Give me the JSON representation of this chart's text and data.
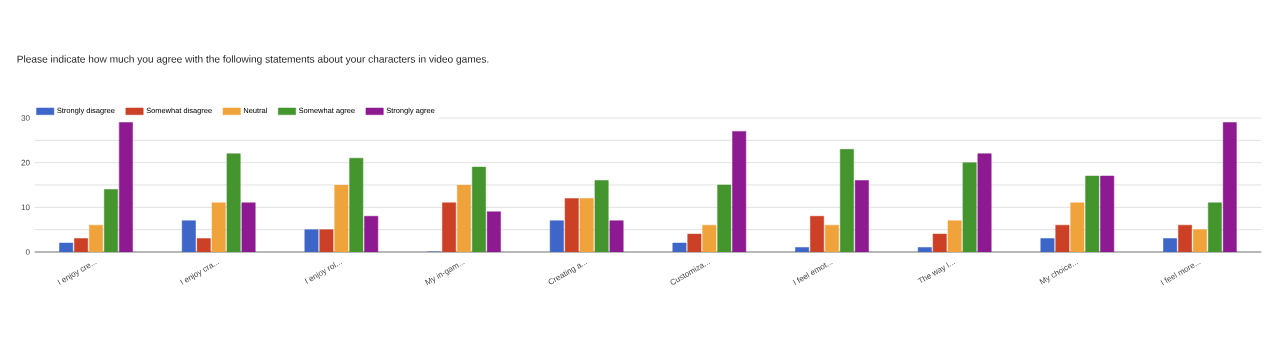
{
  "chart_data": {
    "type": "bar",
    "title": "Please indicate how much you agree with the following statements about your characters in video games.",
    "categories": [
      "I enjoy cre...",
      "I enjoy cra...",
      "I enjoy rol...",
      "My in-gam...",
      "Creating a...",
      "Customiza...",
      "I feel emot...",
      "The way I...",
      "My choice...",
      "I feel more..."
    ],
    "series": [
      {
        "name": "Strongly disagree",
        "color": "#3d66c8",
        "values": [
          2,
          7,
          5,
          0,
          7,
          2,
          1,
          1,
          3,
          3
        ]
      },
      {
        "name": "Somewhat disagree",
        "color": "#cc4125",
        "values": [
          3,
          3,
          5,
          11,
          12,
          4,
          8,
          4,
          6,
          6
        ]
      },
      {
        "name": "Neutral",
        "color": "#f1a33b",
        "values": [
          6,
          11,
          15,
          15,
          12,
          6,
          6,
          7,
          11,
          5
        ]
      },
      {
        "name": "Somewhat agree",
        "color": "#45952f",
        "values": [
          14,
          22,
          21,
          19,
          16,
          15,
          23,
          20,
          17,
          11
        ]
      },
      {
        "name": "Strongly agree",
        "color": "#8e1a92",
        "values": [
          29,
          11,
          8,
          9,
          7,
          27,
          16,
          22,
          17,
          29
        ]
      }
    ],
    "ylim": [
      0,
      30
    ],
    "yticks": [
      0,
      {
        "value": 5,
        "label": null
      },
      10,
      {
        "value": 15,
        "label": null
      },
      20,
      {
        "value": 25,
        "label": null
      },
      30
    ],
    "grid": "y",
    "legend": "top left"
  }
}
